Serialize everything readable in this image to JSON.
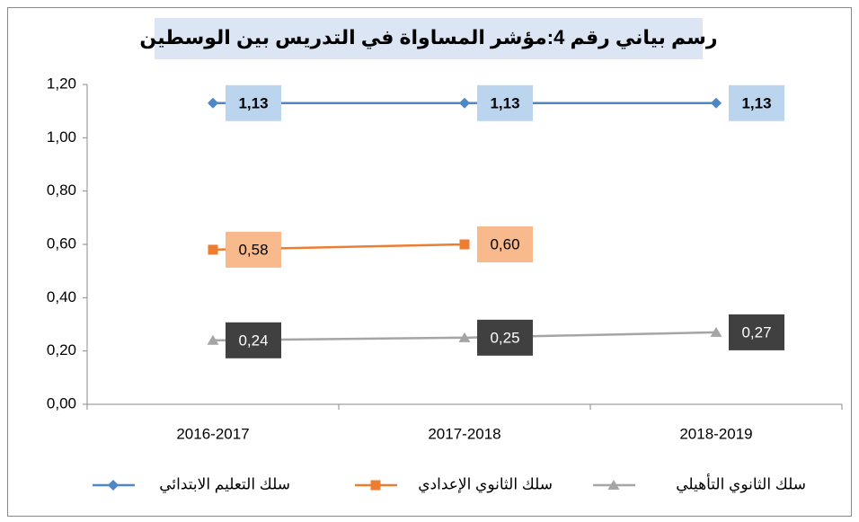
{
  "chart_data": {
    "type": "line",
    "title": "رسم بياني رقم 4:مؤشر المساواة في التدريس بين الوسطين",
    "categories": [
      "2016-2017",
      "2017-2018",
      "2018-2019"
    ],
    "series": [
      {
        "name": "سلك التعليم الابتدائي",
        "color": "#4f86c6",
        "marker": "diamond",
        "values": [
          1.13,
          1.13,
          1.13
        ],
        "value_labels": [
          "1,13",
          "1,13",
          "1,13"
        ]
      },
      {
        "name": "سلك الثانوي الإعدادي",
        "color": "#ed7d31",
        "marker": "square",
        "values": [
          0.58,
          0.6,
          null
        ],
        "value_labels": [
          "0,58",
          "0,60",
          null
        ]
      },
      {
        "name": "سلك الثانوي التأهيلي",
        "color": "#a5a5a5",
        "marker": "triangle",
        "values": [
          0.24,
          0.25,
          0.27
        ],
        "value_labels": [
          "0,24",
          "0,25",
          "0,27"
        ]
      }
    ],
    "ylim": [
      0,
      1.2
    ],
    "yticks": [
      {
        "value": 0,
        "label": "0,00"
      },
      {
        "value": 0.2,
        "label": "0,20"
      },
      {
        "value": 0.4,
        "label": "0,40"
      },
      {
        "value": 0.6,
        "label": "0,60"
      },
      {
        "value": 0.8,
        "label": "0,80"
      },
      {
        "value": 1.0,
        "label": "1,00"
      },
      {
        "value": 1.2,
        "label": "1,20"
      }
    ],
    "grid": false,
    "legend": "bottom"
  }
}
